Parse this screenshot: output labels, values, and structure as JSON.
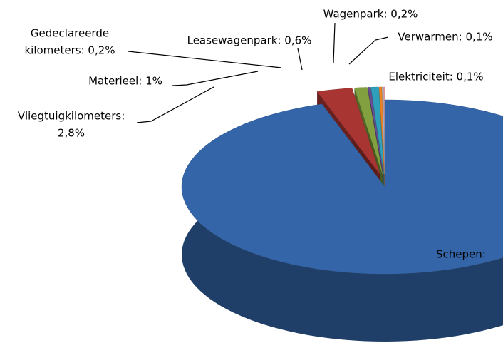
{
  "chart_data": {
    "type": "pie3d",
    "categories": [
      "Schepen",
      "Vliegtuigkilometers",
      "Materieel",
      "Gedeclareerde kilometers",
      "Leasewagenpark",
      "Wagenpark",
      "Verwarmen",
      "Elektriciteit"
    ],
    "values": [
      95,
      2.8,
      1,
      0.2,
      0.6,
      0.2,
      0.1,
      0.1
    ],
    "labels": [
      [
        "Schepen:"
      ],
      [
        "Vliegtuigkilometers:",
        "2,8%"
      ],
      [
        "Materieel: 1%"
      ],
      [
        "Gedeclareerde",
        "kilometers: 0,2%"
      ],
      [
        "Leasewagenpark: 0,6%"
      ],
      [
        "Wagenpark: 0,2%"
      ],
      [
        "Verwarmen: 0,1%"
      ],
      [
        "Elektriciteit: 0,1%"
      ]
    ],
    "colors": [
      "#3465a8",
      "#a83532",
      "#82a040",
      "#674f94",
      "#2f9fba",
      "#ea8222",
      "#9dbbe0",
      "#e09c9a"
    ]
  }
}
